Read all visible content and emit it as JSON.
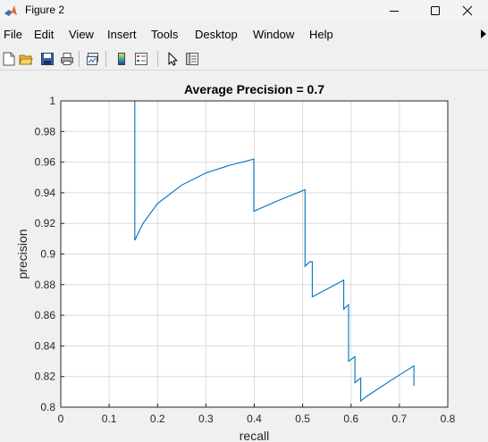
{
  "window": {
    "title": "Figure 2",
    "icon": "matlab-logo-icon"
  },
  "menu": {
    "items": [
      "File",
      "Edit",
      "View",
      "Insert",
      "Tools",
      "Desktop",
      "Window",
      "Help"
    ]
  },
  "toolbar": {
    "icons": [
      "new-figure-icon",
      "open-file-icon",
      "save-icon",
      "print-icon",
      "link-plot-icon",
      "insert-colorbar-icon",
      "insert-legend-icon",
      "edit-plot-icon",
      "property-inspector-icon"
    ]
  },
  "chart_data": {
    "type": "line",
    "title": "Average Precision = 0.7",
    "xlabel": "recall",
    "ylabel": "precision",
    "xlim": [
      0,
      0.8
    ],
    "ylim": [
      0.8,
      1
    ],
    "xticks": [
      "0",
      "0.1",
      "0.2",
      "0.3",
      "0.4",
      "0.5",
      "0.6",
      "0.7",
      "0.8"
    ],
    "yticks": [
      "0.8",
      "0.82",
      "0.84",
      "0.86",
      "0.88",
      "0.9",
      "0.92",
      "0.94",
      "0.96",
      "0.98",
      "1"
    ],
    "grid": true,
    "line_color": "#0072bd",
    "series": [
      {
        "x": [
          0,
          0.153,
          0.153,
          0.17,
          0.2,
          0.25,
          0.3,
          0.35,
          0.399,
          0.399,
          0.45,
          0.505,
          0.505,
          0.515,
          0.52,
          0.52,
          0.585,
          0.585,
          0.595,
          0.595,
          0.608,
          0.608,
          0.62,
          0.62,
          0.632,
          0.632,
          0.68,
          0.73,
          0.73
        ],
        "y": [
          1,
          1,
          0.909,
          0.92,
          0.933,
          0.945,
          0.953,
          0.958,
          0.962,
          0.928,
          0.935,
          0.942,
          0.892,
          0.895,
          0.895,
          0.872,
          0.883,
          0.864,
          0.867,
          0.83,
          0.833,
          0.816,
          0.819,
          0.804,
          0.807,
          0.807,
          0.817,
          0.827,
          0.814
        ]
      }
    ]
  }
}
